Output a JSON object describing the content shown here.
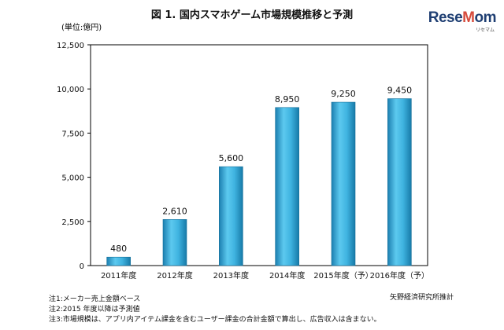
{
  "header": {
    "title": "図 1. 国内スマホゲーム市場規模推移と予測",
    "logo_main": "ReseMom",
    "logo_sub": "リセマム"
  },
  "chart_data": {
    "type": "bar",
    "unit_label": "(単位:億円)",
    "categories": [
      "2011年度",
      "2012年度",
      "2013年度",
      "2014年度",
      "2015年度（予）",
      "2016年度（予）"
    ],
    "values": [
      480,
      2610,
      5600,
      8950,
      9250,
      9450
    ],
    "data_labels": [
      "480",
      "2,610",
      "5,600",
      "8,950",
      "9,250",
      "9,450"
    ],
    "ylim": [
      0,
      12500
    ],
    "y_ticks": [
      0,
      2500,
      5000,
      7500,
      10000,
      12500
    ],
    "y_tick_labels": [
      "0",
      "2,500",
      "5,000",
      "7,500",
      "10,000",
      "12,500"
    ],
    "title": "",
    "xlabel": "",
    "ylabel": "",
    "grid": false,
    "bar_color": "#2fa9d6"
  },
  "footer": {
    "notes": [
      "注1:メーカー売上金額ベース",
      "注2:2015 年度以降は予測値",
      "注3:市場規模は、アプリ内アイテム課金を含むユーザー課金の合計金額で算出し、広告収入は含まない。"
    ],
    "source": "矢野経済研究所推計"
  }
}
